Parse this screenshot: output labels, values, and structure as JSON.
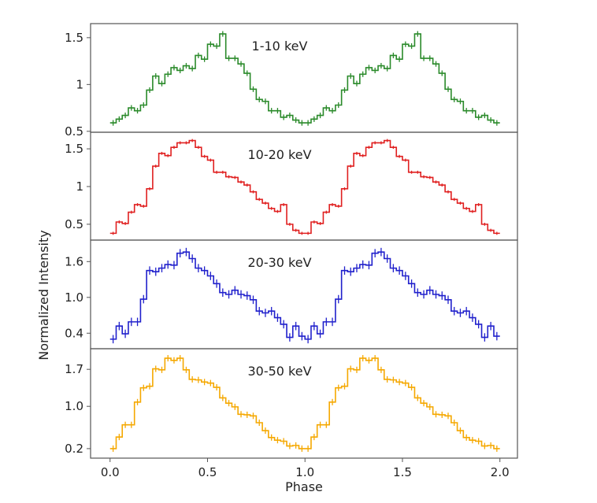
{
  "chart_data": {
    "type": "line",
    "xlabel": "Phase",
    "ylabel": "Normalized Intensity",
    "xlim": [
      -0.1,
      2.09
    ],
    "xticks": [
      0.0,
      0.5,
      1.0,
      1.5,
      2.0
    ],
    "xtick_labels": [
      "0.0",
      "0.5",
      "1.0",
      "1.5",
      "2.0"
    ],
    "bins_per_cycle": 32,
    "cycles": 2,
    "grid": false,
    "panels": [
      {
        "label": "1-10 keV",
        "color": "#2a8a2a",
        "ylim": [
          0.49,
          1.65
        ],
        "yticks": [
          0.5,
          1,
          1.5
        ],
        "ytick_labels": [
          "0.5",
          "1",
          "1.5"
        ],
        "yerr": 0.03,
        "values": [
          0.59,
          0.63,
          0.67,
          0.75,
          0.72,
          0.78,
          0.94,
          1.09,
          1.01,
          1.11,
          1.18,
          1.15,
          1.2,
          1.17,
          1.31,
          1.27,
          1.43,
          1.41,
          1.54,
          1.28,
          1.28,
          1.22,
          1.12,
          0.95,
          0.84,
          0.82,
          0.72,
          0.72,
          0.65,
          0.67,
          0.62,
          0.59
        ]
      },
      {
        "label": "10-20 keV",
        "color": "#e02020",
        "ylim": [
          0.29,
          1.72
        ],
        "yticks": [
          0.5,
          1,
          1.5
        ],
        "ytick_labels": [
          "0.5",
          "1",
          "1.5"
        ],
        "yerr": 0.02,
        "values": [
          0.38,
          0.53,
          0.51,
          0.66,
          0.76,
          0.74,
          0.97,
          1.27,
          1.44,
          1.41,
          1.52,
          1.58,
          1.58,
          1.61,
          1.52,
          1.4,
          1.35,
          1.19,
          1.19,
          1.13,
          1.12,
          1.06,
          1.02,
          0.93,
          0.83,
          0.78,
          0.71,
          0.67,
          0.76,
          0.5,
          0.42,
          0.38
        ]
      },
      {
        "label": "20-30 keV",
        "color": "#2020cc",
        "ylim": [
          0.14,
          1.96
        ],
        "yticks": [
          0.4,
          1.0,
          1.6
        ],
        "ytick_labels": [
          "0.4",
          "1.0",
          "1.6"
        ],
        "yerr": 0.07,
        "values": [
          0.3,
          0.52,
          0.39,
          0.59,
          0.59,
          0.97,
          1.45,
          1.43,
          1.49,
          1.55,
          1.54,
          1.74,
          1.76,
          1.65,
          1.49,
          1.45,
          1.36,
          1.23,
          1.08,
          1.05,
          1.12,
          1.05,
          1.03,
          0.96,
          0.77,
          0.74,
          0.77,
          0.66,
          0.55,
          0.33,
          0.52,
          0.35
        ]
      },
      {
        "label": "30-50 keV",
        "color": "#f5a800",
        "ylim": [
          0.02,
          2.09
        ],
        "yticks": [
          0.2,
          1.0,
          1.7
        ],
        "ytick_labels": [
          "0.2",
          "1.0",
          "1.7"
        ],
        "yerr": 0.06,
        "values": [
          0.2,
          0.42,
          0.65,
          0.65,
          1.08,
          1.35,
          1.38,
          1.71,
          1.69,
          1.91,
          1.87,
          1.91,
          1.69,
          1.51,
          1.5,
          1.46,
          1.44,
          1.36,
          1.16,
          1.06,
          0.99,
          0.85,
          0.84,
          0.82,
          0.69,
          0.54,
          0.41,
          0.36,
          0.34,
          0.25,
          0.26,
          0.2
        ]
      }
    ]
  }
}
